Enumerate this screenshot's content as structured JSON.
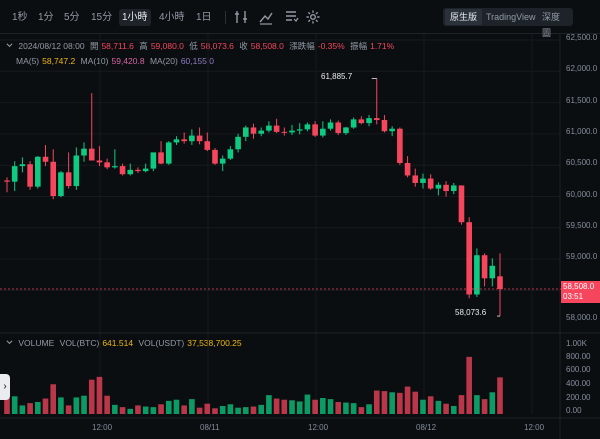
{
  "toolbar": {
    "intervals": [
      {
        "label": "1秒",
        "active": false
      },
      {
        "label": "1分",
        "active": false
      },
      {
        "label": "5分",
        "active": false
      },
      {
        "label": "15分",
        "active": false
      },
      {
        "label": "1小時",
        "active": true
      },
      {
        "label": "4小時",
        "active": false
      },
      {
        "label": "1日",
        "active": false
      }
    ],
    "icons": [
      "indicator-settings-icon",
      "drawing-tool-icon",
      "chart-type-icon",
      "gear-icon"
    ],
    "views": [
      {
        "label": "原生版",
        "active": true
      },
      {
        "label": "TradingView",
        "active": false
      },
      {
        "label": "深度圖",
        "active": false
      }
    ]
  },
  "ohlc": {
    "date": "2024/08/12 08:00",
    "open_label": "開",
    "open": "58,711.6",
    "high_label": "高",
    "high": "59,080.0",
    "low_label": "低",
    "low": "58,073.6",
    "close_label": "收",
    "close": "58,508.0",
    "change_label": "漲跌幅",
    "change": "-0.35%",
    "amplitude_label": "振幅",
    "amplitude": "1.71%"
  },
  "ma": {
    "ma5_label": "MA(5)",
    "ma5": "58,747.2",
    "ma10_label": "MA(10)",
    "ma10": "59,420.8",
    "ma20_label": "MA(20)",
    "ma20": "60,155.0"
  },
  "volume": {
    "label": "VOLUME",
    "btc_label": "VOL(BTC)",
    "btc": "641.514",
    "usdt_label": "VOL(USDT)",
    "usdt": "37,538,700.25"
  },
  "price_axis": [
    "62,500.0",
    "62,000.0",
    "61,500.0",
    "61,000.0",
    "60,500.0",
    "60,000.0",
    "59,500.0",
    "59,000.0",
    "58,000.0"
  ],
  "volume_axis": [
    "1.00K",
    "800.00",
    "600.00",
    "400.00",
    "200.00",
    "0.00"
  ],
  "time_axis": [
    "12:00",
    "08/11",
    "12:00",
    "08/12",
    "12:00"
  ],
  "current_price": {
    "value": "58,508.0",
    "countdown": "03:51"
  },
  "annotations": {
    "high": "61,885.7",
    "low": "58,073.6"
  },
  "colors": {
    "up": "#0ecb81",
    "down": "#f6465d",
    "background": "#0b0e11"
  },
  "chart_data": {
    "type": "candlestick",
    "price_range": [
      57850,
      62600
    ],
    "volume_range": [
      0,
      1120
    ],
    "candles": [
      [
        60250,
        60300,
        60060,
        60230,
        290
      ],
      [
        60230,
        60560,
        60080,
        60480,
        310
      ],
      [
        60480,
        60620,
        60380,
        60510,
        150
      ],
      [
        60510,
        60560,
        60100,
        60150,
        190
      ],
      [
        60150,
        60640,
        60120,
        60630,
        210
      ],
      [
        60630,
        60820,
        60480,
        60550,
        270
      ],
      [
        60550,
        60750,
        59950,
        60000,
        520
      ],
      [
        60000,
        60400,
        59980,
        60380,
        290
      ],
      [
        60380,
        60700,
        60120,
        60160,
        150
      ],
      [
        60160,
        60780,
        60100,
        60650,
        290
      ],
      [
        60650,
        60860,
        60550,
        60760,
        320
      ],
      [
        60760,
        61650,
        60580,
        60570,
        600
      ],
      [
        60570,
        60800,
        60480,
        60540,
        650
      ],
      [
        60540,
        60600,
        60430,
        60460,
        320
      ],
      [
        60460,
        60750,
        60440,
        60480,
        160
      ],
      [
        60480,
        60520,
        60330,
        60350,
        120
      ],
      [
        60350,
        60520,
        60330,
        60420,
        90
      ],
      [
        60420,
        60460,
        60370,
        60400,
        150
      ],
      [
        60400,
        60520,
        60380,
        60440,
        130
      ],
      [
        60440,
        60700,
        60400,
        60700,
        120
      ],
      [
        60700,
        60880,
        60510,
        60520,
        170
      ],
      [
        60520,
        60880,
        60500,
        60860,
        230
      ],
      [
        60860,
        60960,
        60820,
        60910,
        250
      ],
      [
        60910,
        61020,
        60840,
        60880,
        150
      ],
      [
        60880,
        61070,
        60820,
        60970,
        260
      ],
      [
        60970,
        61100,
        60830,
        60880,
        110
      ],
      [
        60880,
        61020,
        60720,
        60740,
        180
      ],
      [
        60740,
        60770,
        60500,
        60520,
        100
      ],
      [
        60520,
        60650,
        60400,
        60600,
        140
      ],
      [
        60600,
        60800,
        60580,
        60750,
        170
      ],
      [
        60750,
        61000,
        60700,
        60950,
        110
      ],
      [
        60950,
        61130,
        60880,
        61100,
        120
      ],
      [
        61100,
        61160,
        60920,
        61000,
        130
      ],
      [
        61000,
        61100,
        60960,
        61050,
        160
      ],
      [
        61050,
        61200,
        61020,
        61130,
        330
      ],
      [
        61130,
        61240,
        61010,
        61030,
        270
      ],
      [
        61030,
        61100,
        60970,
        61020,
        250
      ],
      [
        61020,
        61140,
        60980,
        61050,
        240
      ],
      [
        61050,
        61170,
        60990,
        61070,
        220
      ],
      [
        61070,
        61180,
        61040,
        61150,
        340
      ],
      [
        61150,
        61200,
        60950,
        60970,
        250
      ],
      [
        60970,
        61200,
        60940,
        61080,
        280
      ],
      [
        61080,
        61230,
        61050,
        61180,
        260
      ],
      [
        61180,
        61210,
        60980,
        61010,
        210
      ],
      [
        61010,
        61110,
        60980,
        61100,
        200
      ],
      [
        61100,
        61260,
        61080,
        61230,
        190
      ],
      [
        61230,
        61280,
        61150,
        61170,
        120
      ],
      [
        61170,
        61300,
        61120,
        61250,
        170
      ],
      [
        61250,
        61886,
        61150,
        61220,
        410
      ],
      [
        61220,
        61300,
        61020,
        61040,
        400
      ],
      [
        61040,
        61120,
        60960,
        61080,
        380
      ],
      [
        61080,
        61100,
        60500,
        60530,
        370
      ],
      [
        60530,
        60640,
        60300,
        60330,
        480
      ],
      [
        60330,
        60440,
        60150,
        60210,
        390
      ],
      [
        60210,
        60360,
        60120,
        60280,
        250
      ],
      [
        60280,
        60350,
        60100,
        60120,
        310
      ],
      [
        60120,
        60220,
        60010,
        60180,
        230
      ],
      [
        60180,
        60240,
        59990,
        60080,
        180
      ],
      [
        60080,
        60210,
        60030,
        60170,
        140
      ],
      [
        60170,
        60170,
        59540,
        59580,
        330
      ],
      [
        59580,
        59660,
        58360,
        58420,
        1000
      ],
      [
        58420,
        59160,
        58380,
        59050,
        330
      ],
      [
        59050,
        59080,
        58550,
        58680,
        260
      ],
      [
        58680,
        59000,
        58550,
        58880,
        380
      ],
      [
        58711.6,
        59080,
        58073.6,
        58508,
        641.514
      ]
    ]
  }
}
